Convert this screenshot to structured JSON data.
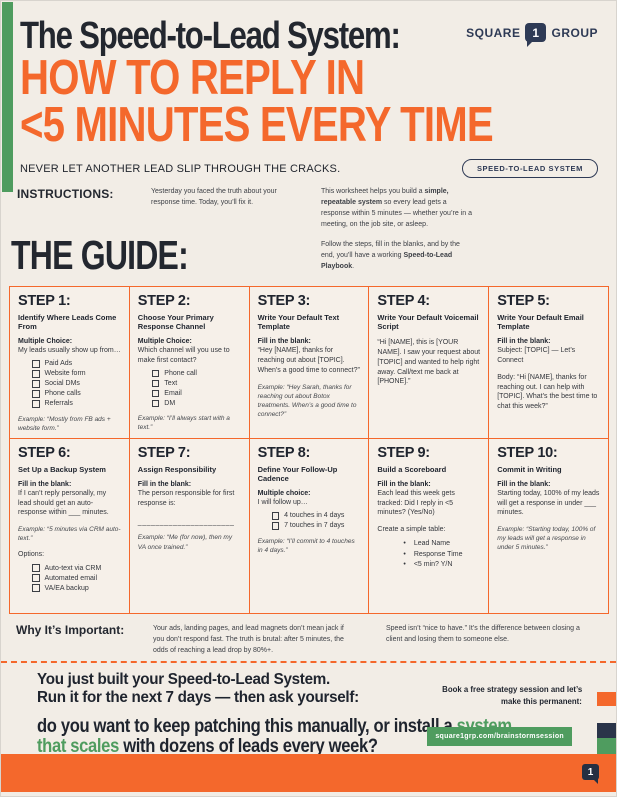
{
  "colors": {
    "orange": "#F4682C",
    "navy": "#2E3A55",
    "green": "#4F9C5F",
    "cream": "#F2EDE6",
    "ink": "#23272F"
  },
  "header": {
    "logo_square": "SQUARE",
    "logo_one": "1",
    "logo_group": "GROUP",
    "title": "The Speed-to-Lead System:",
    "headline1": "HOW TO REPLY IN",
    "headline2": "<5 MINUTES EVERY TIME",
    "tagline": "NEVER LET ANOTHER LEAD SLIP THROUGH THE CRACKS.",
    "badge": "SPEED-TO-LEAD SYSTEM"
  },
  "instructions": {
    "label": "INSTRUCTIONS:",
    "col1": "Yesterday you faced the truth about your response time. Today, you’ll fix it.",
    "p1_pre": "This worksheet helps you build a ",
    "p1_bold": "simple, repeatable system",
    "p1_post": " so every lead gets a response within 5 minutes — whether you’re in a meeting, on the job site, or asleep.",
    "p2_pre": "Follow the steps, fill in the blanks, and by the end, you’ll have a working ",
    "p2_bold": "Speed-to-Lead Playbook",
    "p2_post": "."
  },
  "guide_title": "THE GUIDE:",
  "steps": [
    {
      "title": "STEP 1:",
      "subtitle": "Identify Where Leads Come From",
      "blocks": [
        {
          "type": "label",
          "text": "Multiple Choice:"
        },
        {
          "type": "text",
          "text": "My leads usually show up from…"
        },
        {
          "type": "checks",
          "items": [
            "Paid Ads",
            "Website form",
            "Social DMs",
            "Phone calls",
            "Referrals"
          ]
        },
        {
          "type": "example",
          "text": "Example: “Mostly from FB ads + website form.”"
        }
      ]
    },
    {
      "title": "STEP 2:",
      "subtitle": "Choose Your Primary Response Channel",
      "blocks": [
        {
          "type": "label",
          "text": "Multiple Choice:"
        },
        {
          "type": "text",
          "text": "Which channel will you use to make first contact?"
        },
        {
          "type": "checks",
          "items": [
            "Phone call",
            "Text",
            "Email",
            "DM"
          ]
        },
        {
          "type": "example",
          "text": "Example: “I’ll always start with a text.”"
        }
      ]
    },
    {
      "title": "STEP 3:",
      "subtitle": "Write Your Default Text Template",
      "blocks": [
        {
          "type": "label",
          "text": "Fill in the blank:"
        },
        {
          "type": "text",
          "text": "“Hey [NAME], thanks for reaching out about [TOPIC]. When’s a good time to connect?”"
        },
        {
          "type": "example",
          "text": "Example: “Hey Sarah, thanks for reaching out about Botox treatments. When’s a good time to connect?”"
        }
      ]
    },
    {
      "title": "STEP 4:",
      "subtitle": "Write Your Default Voicemail Script",
      "blocks": [
        {
          "type": "text",
          "text": "“Hi [NAME], this is [YOUR NAME]. I saw your request about [TOPIC] and wanted to help right away. Call/text me back at [PHONE].”"
        }
      ]
    },
    {
      "title": "STEP 5:",
      "subtitle": "Write Your Default Email Template",
      "blocks": [
        {
          "type": "label",
          "text": "Fill in the blank:"
        },
        {
          "type": "text",
          "text": "Subject: [TOPIC] — Let’s Connect"
        },
        {
          "type": "text",
          "text": "Body: “Hi [NAME], thanks for reaching out. I can help with [TOPIC]. What’s the best time to chat this week?”"
        }
      ]
    },
    {
      "title": "STEP 6:",
      "subtitle": "Set Up a Backup System",
      "blocks": [
        {
          "type": "label",
          "text": "Fill in the blank:"
        },
        {
          "type": "text",
          "text": "If I can’t reply personally, my lead should get an auto-response within ___ minutes."
        },
        {
          "type": "example",
          "text": "Example: “5 minutes via CRM auto-text.”"
        },
        {
          "type": "text",
          "text": "Options:"
        },
        {
          "type": "checks",
          "items": [
            "Auto-text via CRM",
            "Automated email",
            "VA/EA backup"
          ]
        }
      ]
    },
    {
      "title": "STEP 7:",
      "subtitle": "Assign Responsibility",
      "blocks": [
        {
          "type": "label",
          "text": "Fill in the blank:"
        },
        {
          "type": "text",
          "text": "The person responsible for first response is:"
        },
        {
          "type": "blank",
          "text": "______________________"
        },
        {
          "type": "example",
          "text": "Example: “Me (for now), then my VA once trained.”"
        }
      ]
    },
    {
      "title": "STEP 8:",
      "subtitle": "Define Your Follow-Up Cadence",
      "blocks": [
        {
          "type": "label",
          "text": "Multiple choice:"
        },
        {
          "type": "text",
          "text": "I will follow up…"
        },
        {
          "type": "checks",
          "items": [
            "4 touches in 4 days",
            "7 touches in 7 days"
          ]
        },
        {
          "type": "example",
          "text": "Example: “I’ll commit to 4 touches in 4 days.”"
        }
      ]
    },
    {
      "title": "STEP 9:",
      "subtitle": "Build a Scoreboard",
      "blocks": [
        {
          "type": "label",
          "text": "Fill in the blank:"
        },
        {
          "type": "text",
          "text": "Each lead this week gets tracked: Did I reply in <5 minutes? (Yes/No)"
        },
        {
          "type": "text",
          "text": "Create a simple table:"
        },
        {
          "type": "bullets",
          "items": [
            "Lead Name",
            "Response Time",
            "<5 min? Y/N"
          ]
        }
      ]
    },
    {
      "title": "STEP 10:",
      "subtitle": "Commit in Writing",
      "blocks": [
        {
          "type": "label",
          "text": "Fill in the blank:"
        },
        {
          "type": "text",
          "text": "Starting today, 100% of my leads will get a response in under ___ minutes."
        },
        {
          "type": "example",
          "text": "Example: “Starting today, 100% of my leads will get a response in under 5 minutes.”"
        }
      ]
    }
  ],
  "why": {
    "label": "Why It’s Important:",
    "col1": "Your ads, landing pages, and lead magnets don’t mean jack if you don’t respond fast. The truth is brutal: after 5 minutes, the odds of reaching a lead drop by 80%+.",
    "col2": "Speed isn’t “nice to have.” It’s the difference between closing a client and losing them to someone else."
  },
  "footer": {
    "headline1": "You just built your Speed-to-Lead System.",
    "headline2": "Run it for the next 7 days — then ask yourself:",
    "question_pre": "do you want to keep patching this manually, or install a ",
    "question_green": "system that scales",
    "question_post": " with dozens of leads every week?",
    "cta1": "Book a free strategy session and let’s",
    "cta2": "make this permanent:",
    "cta_button": "square1grp.com/brainstormsession",
    "page_number": "1"
  }
}
